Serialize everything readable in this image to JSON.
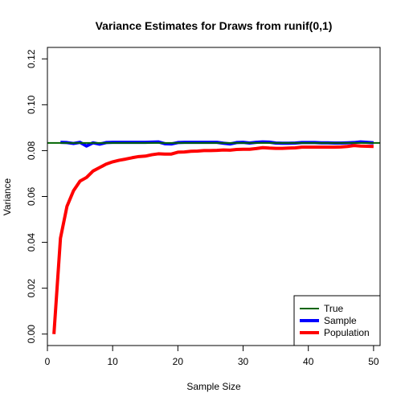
{
  "chart_data": {
    "type": "line",
    "title": "Variance Estimates for Draws from runif(0,1)",
    "xlabel": "Sample Size",
    "ylabel": "Variance",
    "xlim": [
      0,
      51
    ],
    "ylim": [
      -0.005,
      0.125
    ],
    "xticks": [
      "0",
      "10",
      "20",
      "30",
      "40",
      "50"
    ],
    "yticks": [
      "0.00",
      "0.02",
      "0.04",
      "0.06",
      "0.08",
      "0.10",
      "0.12"
    ],
    "true_value": 0.08333,
    "legend_position": "bottom-right",
    "series": [
      {
        "name": "True",
        "color": "#006400"
      },
      {
        "name": "Sample",
        "color": "#0000ff",
        "x": [
          2,
          3,
          4,
          5,
          6,
          7,
          8,
          9,
          10,
          11,
          12,
          13,
          14,
          15,
          16,
          17,
          18,
          19,
          20,
          21,
          22,
          23,
          24,
          25,
          26,
          27,
          28,
          29,
          30,
          31,
          32,
          33,
          34,
          35,
          36,
          37,
          38,
          39,
          40,
          41,
          42,
          43,
          44,
          45,
          46,
          47,
          48,
          49,
          50
        ],
        "values": [
          0.0836,
          0.0835,
          0.0831,
          0.0836,
          0.082,
          0.0834,
          0.0828,
          0.0835,
          0.0836,
          0.0836,
          0.0836,
          0.0836,
          0.0836,
          0.0836,
          0.0837,
          0.0838,
          0.083,
          0.0829,
          0.0835,
          0.0836,
          0.0836,
          0.0836,
          0.0836,
          0.0836,
          0.0836,
          0.0832,
          0.0829,
          0.0835,
          0.0836,
          0.0833,
          0.0836,
          0.0838,
          0.0837,
          0.0833,
          0.0832,
          0.0832,
          0.0833,
          0.0835,
          0.0835,
          0.0835,
          0.0834,
          0.0834,
          0.0833,
          0.0833,
          0.0834,
          0.0835,
          0.0838,
          0.0836,
          0.0834
        ]
      },
      {
        "name": "Population",
        "color": "#ff0000",
        "x": [
          1,
          2,
          3,
          4,
          5,
          6,
          7,
          8,
          9,
          10,
          11,
          12,
          13,
          14,
          15,
          16,
          17,
          18,
          19,
          20,
          21,
          22,
          23,
          24,
          25,
          26,
          27,
          28,
          29,
          30,
          31,
          32,
          33,
          34,
          35,
          36,
          37,
          38,
          39,
          40,
          41,
          42,
          43,
          44,
          45,
          46,
          47,
          48,
          49,
          50
        ],
        "values": [
          0.0,
          0.0418,
          0.0557,
          0.0625,
          0.0667,
          0.0683,
          0.0711,
          0.0726,
          0.0741,
          0.0751,
          0.0758,
          0.0763,
          0.0769,
          0.0774,
          0.0776,
          0.0782,
          0.0786,
          0.0785,
          0.0785,
          0.0793,
          0.0794,
          0.0797,
          0.0798,
          0.08,
          0.08,
          0.0801,
          0.0803,
          0.0802,
          0.0805,
          0.0806,
          0.0806,
          0.0809,
          0.0813,
          0.0811,
          0.081,
          0.081,
          0.0811,
          0.0812,
          0.0815,
          0.0815,
          0.0815,
          0.0815,
          0.0815,
          0.0815,
          0.0816,
          0.0818,
          0.0822,
          0.082,
          0.0819,
          0.0818
        ]
      }
    ]
  }
}
